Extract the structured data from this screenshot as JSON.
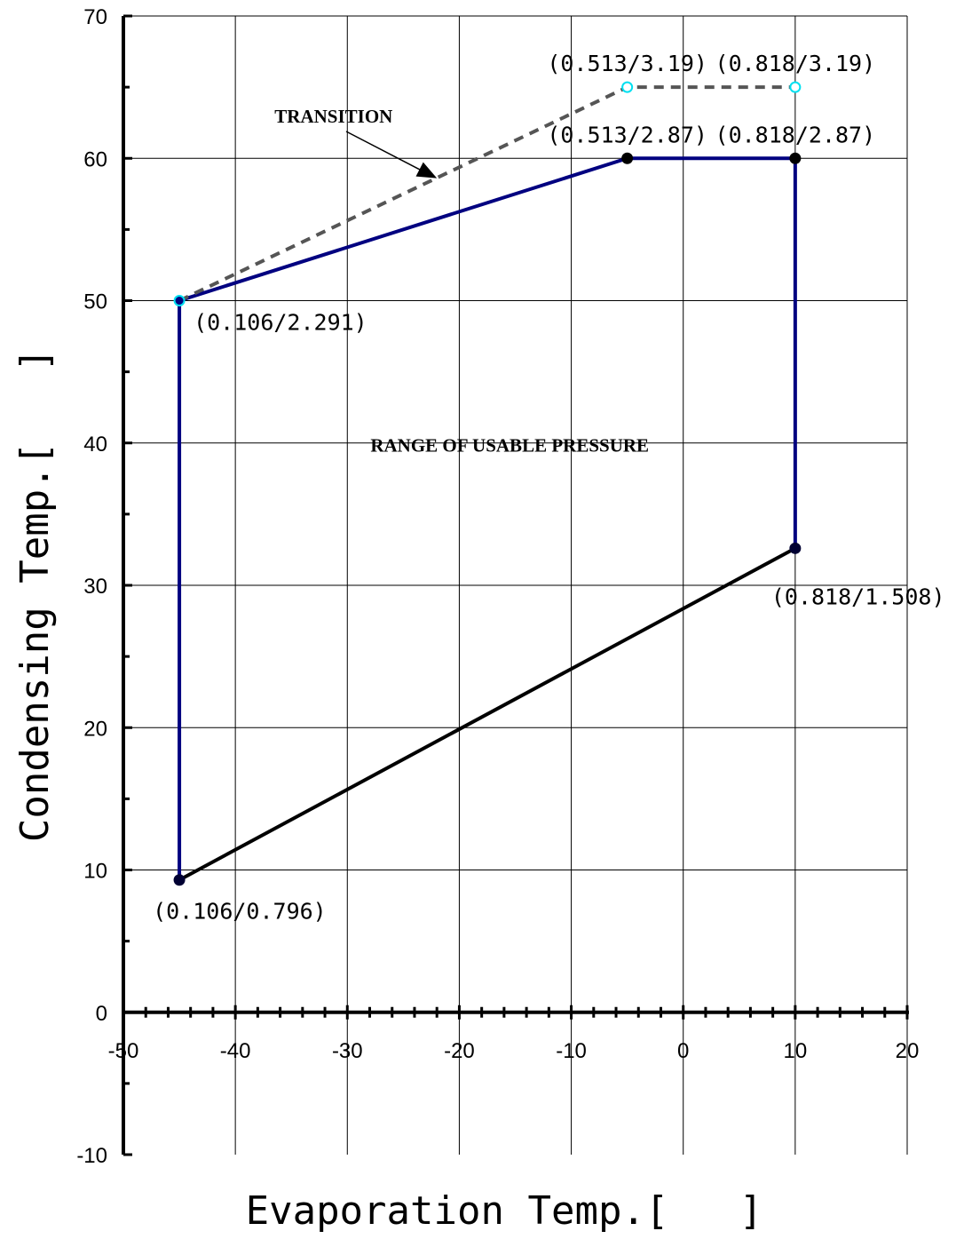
{
  "chart_data": {
    "type": "line",
    "xlabel": "Evaporation Temp.[   ]",
    "ylabel": "Condensing Temp.[   ]",
    "xlim": [
      -50,
      20
    ],
    "ylim": [
      -10,
      70
    ],
    "x_ticks": [
      -50,
      -40,
      -30,
      -20,
      -10,
      0,
      10,
      20
    ],
    "y_ticks": [
      -10,
      0,
      10,
      20,
      30,
      40,
      50,
      60,
      70
    ],
    "x_minor_step": 2,
    "y_minor_step": 5,
    "grid": true,
    "series": [
      {
        "style": "solid",
        "color": "#000080",
        "points": [
          [
            -45,
            9.3
          ],
          [
            -45,
            50
          ],
          [
            -5,
            60
          ],
          [
            10,
            60
          ],
          [
            10,
            32.6
          ]
        ]
      },
      {
        "style": "solid",
        "color": "#000000",
        "points": [
          [
            -45,
            9.3
          ],
          [
            10,
            32.6
          ]
        ]
      },
      {
        "style": "dashed",
        "color": "#555555",
        "points": [
          [
            -45,
            50
          ],
          [
            -5,
            65
          ],
          [
            10,
            65
          ]
        ]
      }
    ],
    "markers": [
      {
        "x": -45,
        "y": 50,
        "fill": "#000080",
        "ring": "#00e0f0"
      },
      {
        "x": -45,
        "y": 9.3,
        "fill": "#000033",
        "ring": "#000033"
      },
      {
        "x": -5,
        "y": 60,
        "fill": "#000000",
        "ring": "#000000"
      },
      {
        "x": 10,
        "y": 60,
        "fill": "#000000",
        "ring": "#000000"
      },
      {
        "x": 10,
        "y": 32.6,
        "fill": "#000033",
        "ring": "#000033"
      },
      {
        "x": -5,
        "y": 65,
        "fill": "#ffffff",
        "ring": "#00e0f0"
      },
      {
        "x": 10,
        "y": 65,
        "fill": "#ffffff",
        "ring": "#00e0f0"
      }
    ],
    "point_labels": [
      {
        "text": "(0.513/3.19)",
        "x": -5,
        "y": 65,
        "anchor": "middle"
      },
      {
        "text": "(0.818/3.19)",
        "x": 10,
        "y": 65,
        "anchor": "middle"
      },
      {
        "text": "(0.513/2.87)",
        "x": -5,
        "y": 60,
        "anchor": "middle"
      },
      {
        "text": "(0.818/2.87)",
        "x": 10,
        "y": 60,
        "anchor": "middle"
      },
      {
        "text": "(0.106/2.291)",
        "x": -45,
        "y": 50,
        "anchor": "start"
      },
      {
        "text": "(0.818/1.508)",
        "x": 10,
        "y": 32.6,
        "anchor": "start"
      },
      {
        "text": "(0.106/0.796)",
        "x": -45,
        "y": 9.3,
        "anchor": "start"
      }
    ],
    "annotations": [
      {
        "text": "TRANSITION",
        "x": -36.5,
        "y": 62.5,
        "arrow_to": [
          -22,
          58.6
        ]
      },
      {
        "text": "RANGE OF USABLE PRESSURE",
        "x": -15.5,
        "y": 39.4
      }
    ]
  }
}
